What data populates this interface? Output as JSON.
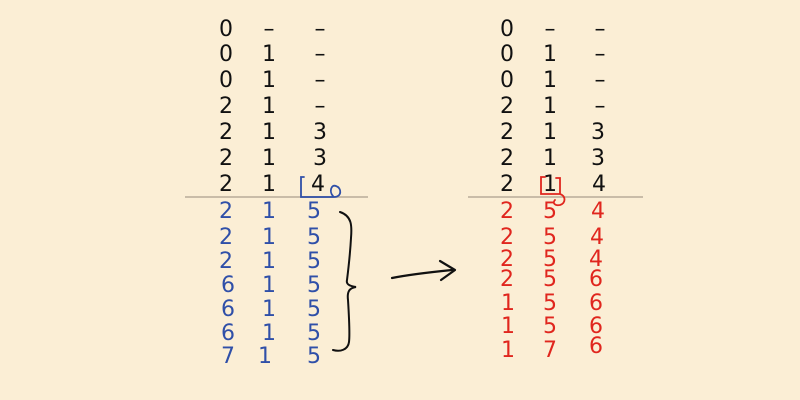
{
  "colors": {
    "background": "#fbeed5",
    "ink_black": "#111111",
    "ink_blue": "#2f4fa8",
    "ink_red": "#e0261e",
    "divider": "#c9bca8"
  },
  "left_table": {
    "top_rows": [
      [
        "0",
        "–",
        "–"
      ],
      [
        "0",
        "1",
        "–"
      ],
      [
        "0",
        "1",
        "–"
      ],
      [
        "2",
        "1",
        "–"
      ],
      [
        "2",
        "1",
        "3"
      ],
      [
        "2",
        "1",
        "3"
      ],
      [
        "2",
        "1",
        "4"
      ]
    ],
    "bottom_rows": [
      [
        "2",
        "1",
        "5"
      ],
      [
        "2",
        "1",
        "5"
      ],
      [
        "2",
        "1",
        "5"
      ],
      [
        "6",
        "1",
        "5"
      ],
      [
        "6",
        "1",
        "5"
      ],
      [
        "6",
        "1",
        "5"
      ],
      [
        "7",
        "1",
        "5"
      ]
    ]
  },
  "right_table": {
    "top_rows": [
      [
        "0",
        "–",
        "–"
      ],
      [
        "0",
        "1",
        "–"
      ],
      [
        "0",
        "1",
        "–"
      ],
      [
        "2",
        "1",
        "–"
      ],
      [
        "2",
        "1",
        "3"
      ],
      [
        "2",
        "1",
        "3"
      ],
      [
        "2",
        "1",
        "4"
      ]
    ],
    "bottom_rows": [
      [
        "2",
        "5",
        "4"
      ],
      [
        "2",
        "5",
        "4"
      ],
      [
        "2",
        "5",
        "4"
      ],
      [
        "2",
        "5",
        "6"
      ],
      [
        "1",
        "5",
        "6"
      ],
      [
        "1",
        "5",
        "6"
      ],
      [
        "1",
        "7",
        "6"
      ]
    ]
  }
}
